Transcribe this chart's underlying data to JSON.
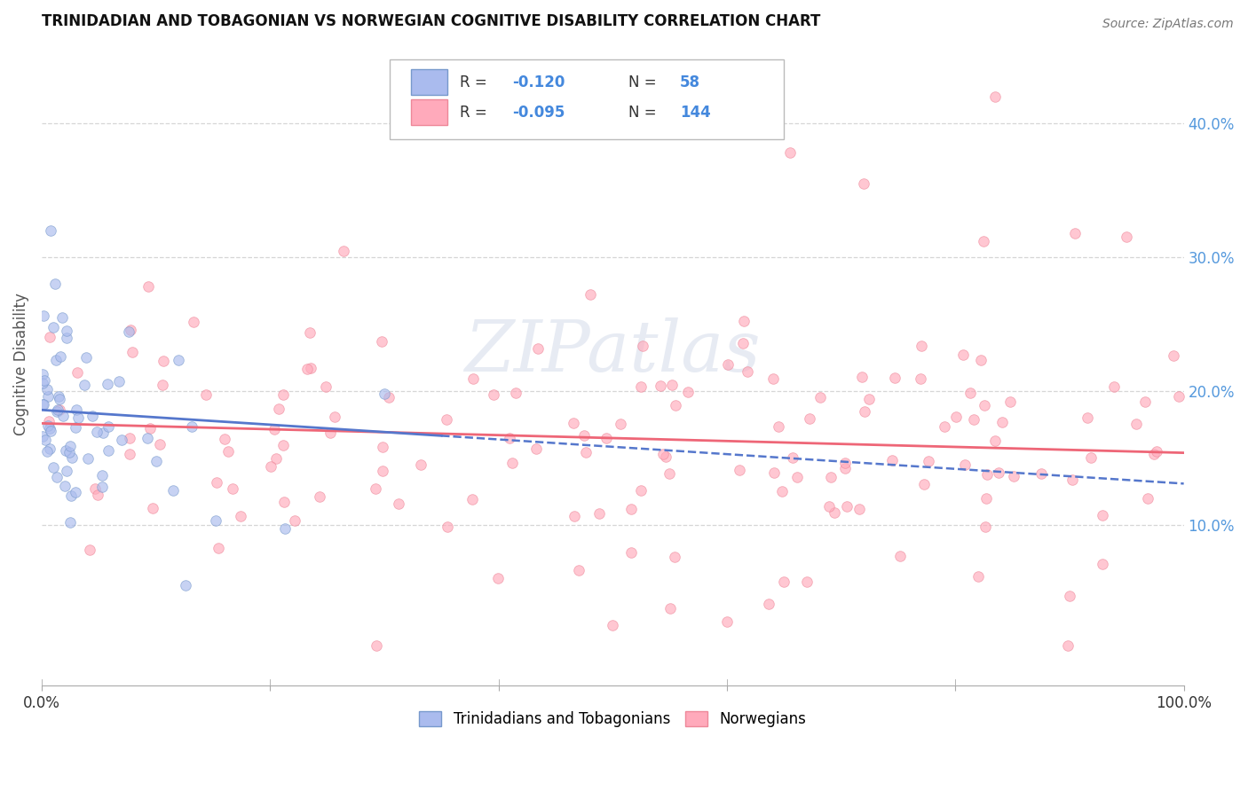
{
  "title": "TRINIDADIAN AND TOBAGONIAN VS NORWEGIAN COGNITIVE DISABILITY CORRELATION CHART",
  "source": "Source: ZipAtlas.com",
  "ylabel": "Cognitive Disability",
  "watermark": "ZIPatlas",
  "xlim": [
    0.0,
    1.0
  ],
  "ylim": [
    -0.02,
    0.46
  ],
  "right_yticks": [
    0.1,
    0.2,
    0.3,
    0.4
  ],
  "right_yticklabels": [
    "10.0%",
    "20.0%",
    "30.0%",
    "40.0%"
  ],
  "grid_color": "#cccccc",
  "background_color": "#ffffff",
  "blue_scatter_color": "#aabbee",
  "blue_edge_color": "#7799cc",
  "pink_scatter_color": "#ffaabb",
  "pink_edge_color": "#ee8899",
  "blue_line_color": "#5577cc",
  "pink_line_color": "#ee6677",
  "legend_label1": "Trinidadians and Tobagonians",
  "legend_label2": "Norwegians",
  "blue_N": 58,
  "pink_N": 144,
  "blue_seed": 12,
  "pink_seed": 99
}
